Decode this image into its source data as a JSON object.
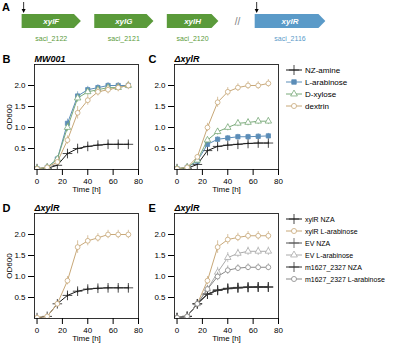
{
  "chart_data": [
    {
      "type": "gene_diagram",
      "annotations": [
        "A"
      ],
      "series": [
        {
          "name": "xylF",
          "color": "#5a9a3a",
          "annotations": [
            "saci_2122"
          ]
        },
        {
          "name": "xylG",
          "color": "#5a9a3a",
          "annotations": [
            "saci_2121"
          ]
        },
        {
          "name": "xylH",
          "color": "#5a9a3a",
          "annotations": [
            "saci_2120"
          ]
        },
        {
          "name": "//",
          "color": "gray"
        },
        {
          "name": "xylR",
          "color": "#5a9ac8",
          "annotations": [
            "saci_2116"
          ]
        }
      ]
    },
    {
      "type": "line",
      "title": "MW001",
      "annotations": [
        "B"
      ],
      "x_label": "Time [h]",
      "y_label": "OD600",
      "x": [
        0,
        8,
        16,
        24,
        32,
        40,
        48,
        56,
        64,
        72
      ],
      "xlim": [
        -2,
        80
      ],
      "xticks": [
        0,
        20,
        40,
        60,
        80
      ],
      "ylim": [
        0,
        2.5
      ],
      "yticks": [
        0.5,
        {
          "value": 1.0,
          "label": "1.0"
        },
        1.5,
        {
          "value": 2.0,
          "label": "2.0"
        }
      ],
      "grid": false,
      "series": [
        {
          "name": "NZ-amine",
          "color": "#1a1a1a",
          "marker": "plus",
          "values": [
            0.02,
            0.03,
            0.1,
            0.38,
            0.5,
            0.55,
            0.58,
            0.6,
            0.6,
            0.6
          ],
          "errors": [
            0.005,
            0.005,
            0.01,
            0.03,
            0.03,
            0.03,
            0.03,
            0.03,
            0.03,
            0.03
          ]
        },
        {
          "name": "L-arabinose",
          "color": "#5b8db8",
          "marker": "square",
          "values": [
            0.02,
            0.05,
            0.25,
            1.1,
            1.75,
            1.9,
            1.95,
            2.0,
            2.0,
            2.0
          ],
          "errors": [
            0.005,
            0.01,
            0.05,
            0.1,
            0.1,
            0.08,
            0.07,
            0.07,
            0.07,
            0.07
          ]
        },
        {
          "name": "D-xylose",
          "color": "#7aaa7a",
          "marker": "triangle-open",
          "values": [
            0.02,
            0.05,
            0.25,
            1.0,
            1.7,
            1.85,
            1.9,
            1.95,
            1.95,
            2.0
          ],
          "errors": [
            0.005,
            0.01,
            0.05,
            0.1,
            0.1,
            0.08,
            0.07,
            0.07,
            0.07,
            0.07
          ]
        },
        {
          "name": "dextrin",
          "color": "#c8a878",
          "marker": "circle-open",
          "values": [
            0.02,
            0.05,
            0.18,
            0.7,
            1.35,
            1.65,
            1.85,
            1.9,
            1.95,
            2.0
          ],
          "errors": [
            0.005,
            0.01,
            0.04,
            0.1,
            0.15,
            0.12,
            0.1,
            0.1,
            0.1,
            0.1
          ]
        }
      ]
    },
    {
      "type": "line",
      "title": "ΔxylR",
      "annotations": [
        "C"
      ],
      "x_label": "Time [h]",
      "legend": "right",
      "x": [
        0,
        8,
        16,
        24,
        32,
        40,
        48,
        56,
        64,
        72
      ],
      "xlim": [
        -2,
        80
      ],
      "xticks": [
        0,
        20,
        40,
        60,
        80
      ],
      "ylim": [
        0,
        2.5
      ],
      "yticks": [
        0.5,
        {
          "value": 1.0,
          "label": "1.0"
        },
        1.5,
        {
          "value": 2.0,
          "label": "2.0"
        }
      ],
      "grid": false,
      "series": [
        {
          "name": "NZ-amine",
          "color": "#1a1a1a",
          "marker": "plus",
          "values": [
            0.02,
            0.03,
            0.12,
            0.45,
            0.55,
            0.58,
            0.6,
            0.62,
            0.63,
            0.63
          ],
          "errors": [
            0.005,
            0.005,
            0.01,
            0.03,
            0.03,
            0.03,
            0.03,
            0.03,
            0.03,
            0.03
          ]
        },
        {
          "name": "L-arabinose",
          "color": "#5b8db8",
          "marker": "square",
          "values": [
            0.02,
            0.05,
            0.2,
            0.6,
            0.72,
            0.75,
            0.78,
            0.78,
            0.79,
            0.8
          ],
          "errors": [
            0.005,
            0.01,
            0.04,
            0.06,
            0.06,
            0.06,
            0.06,
            0.06,
            0.06,
            0.06
          ]
        },
        {
          "name": "D-xylose",
          "color": "#7aaa7a",
          "marker": "triangle-open",
          "values": [
            0.02,
            0.05,
            0.22,
            0.7,
            0.9,
            1.0,
            1.1,
            1.12,
            1.15,
            1.15
          ],
          "errors": [
            0.005,
            0.01,
            0.04,
            0.07,
            0.08,
            0.08,
            0.08,
            0.08,
            0.08,
            0.08
          ]
        },
        {
          "name": "dextrin",
          "color": "#c8a878",
          "marker": "circle-open",
          "values": [
            0.02,
            0.05,
            0.3,
            1.0,
            1.6,
            1.85,
            1.95,
            2.0,
            2.0,
            2.05
          ],
          "errors": [
            0.005,
            0.01,
            0.06,
            0.1,
            0.12,
            0.1,
            0.09,
            0.09,
            0.09,
            0.09
          ]
        }
      ]
    },
    {
      "type": "line",
      "title": "ΔxylR",
      "annotations": [
        "D"
      ],
      "x_label": "Time [h]",
      "y_label": "OD600",
      "x": [
        0,
        8,
        16,
        24,
        32,
        40,
        48,
        56,
        64,
        72
      ],
      "xlim": [
        -2,
        80
      ],
      "xticks": [
        0,
        20,
        40,
        60,
        80
      ],
      "ylim": [
        0,
        2.5
      ],
      "yticks": [
        0.5,
        {
          "value": 1.0,
          "label": "1.0"
        },
        1.5,
        {
          "value": 2.0,
          "label": "2.0"
        }
      ],
      "grid": false,
      "series": [
        {
          "name": "xylR NZA",
          "color": "#1a1a1a",
          "marker": "plus",
          "values": [
            0.02,
            0.05,
            0.35,
            0.55,
            0.65,
            0.7,
            0.72,
            0.73,
            0.73,
            0.73
          ],
          "errors": [
            0.005,
            0.01,
            0.04,
            0.05,
            0.05,
            0.05,
            0.05,
            0.05,
            0.05,
            0.05
          ]
        },
        {
          "name": "xylR L-arabinose",
          "color": "#c8a878",
          "marker": "circle-open",
          "values": [
            0.02,
            0.05,
            0.35,
            0.9,
            1.7,
            1.85,
            1.92,
            2.0,
            2.0,
            2.0
          ],
          "errors": [
            0.005,
            0.01,
            0.05,
            0.1,
            0.15,
            0.12,
            0.1,
            0.1,
            0.1,
            0.1
          ]
        }
      ]
    },
    {
      "type": "line",
      "title": "ΔxylR",
      "annotations": [
        "E"
      ],
      "x_label": "Time [h]",
      "legend": "right",
      "x": [
        0,
        8,
        16,
        24,
        32,
        40,
        48,
        56,
        64,
        72
      ],
      "xlim": [
        -2,
        80
      ],
      "xticks": [
        0,
        20,
        40,
        60,
        80
      ],
      "ylim": [
        0,
        2.5
      ],
      "yticks": [
        0.5,
        {
          "value": 1.0,
          "label": "1.0"
        },
        1.5,
        {
          "value": 2.0,
          "label": "2.0"
        }
      ],
      "grid": false,
      "series": [
        {
          "name": "xylR NZA",
          "color": "#1a1a1a",
          "marker": "plus",
          "values": [
            0.02,
            0.05,
            0.35,
            0.58,
            0.68,
            0.72,
            0.74,
            0.75,
            0.75,
            0.75
          ],
          "errors": [
            0.005,
            0.01,
            0.04,
            0.05,
            0.05,
            0.05,
            0.05,
            0.05,
            0.05,
            0.05
          ]
        },
        {
          "name": "xylR L-arabinose",
          "color": "#c8a878",
          "marker": "circle-open",
          "values": [
            0.02,
            0.05,
            0.35,
            0.9,
            1.7,
            1.88,
            1.93,
            1.97,
            1.97,
            1.97
          ],
          "errors": [
            0.005,
            0.01,
            0.05,
            0.1,
            0.15,
            0.12,
            0.1,
            0.1,
            0.1,
            0.1
          ]
        },
        {
          "name": "EV NZA",
          "color": "#555555",
          "marker": "plus",
          "values": [
            0.02,
            0.05,
            0.35,
            0.58,
            0.67,
            0.71,
            0.73,
            0.74,
            0.75,
            0.75
          ],
          "errors": [
            0.005,
            0.01,
            0.04,
            0.05,
            0.05,
            0.05,
            0.05,
            0.05,
            0.05,
            0.05
          ]
        },
        {
          "name": "EV L-arabinose",
          "color": "#aaaaaa",
          "marker": "triangle-open",
          "values": [
            0.02,
            0.05,
            0.35,
            0.7,
            1.1,
            1.45,
            1.55,
            1.6,
            1.6,
            1.6
          ],
          "errors": [
            0.005,
            0.01,
            0.05,
            0.08,
            0.12,
            0.12,
            0.1,
            0.1,
            0.1,
            0.1
          ]
        },
        {
          "name": "m1627_2327 NZA",
          "color": "#333333",
          "marker": "plus",
          "values": [
            0.02,
            0.05,
            0.35,
            0.58,
            0.67,
            0.71,
            0.73,
            0.74,
            0.75,
            0.75
          ],
          "errors": [
            0.005,
            0.01,
            0.04,
            0.05,
            0.05,
            0.05,
            0.05,
            0.05,
            0.05,
            0.05
          ]
        },
        {
          "name": "m1627_2327 L-arabinose",
          "color": "#888888",
          "marker": "circle-open",
          "values": [
            0.02,
            0.05,
            0.35,
            0.7,
            1.0,
            1.15,
            1.2,
            1.22,
            1.22,
            1.22
          ],
          "errors": [
            0.005,
            0.01,
            0.05,
            0.08,
            0.1,
            0.1,
            0.08,
            0.08,
            0.08,
            0.08
          ]
        }
      ]
    }
  ]
}
